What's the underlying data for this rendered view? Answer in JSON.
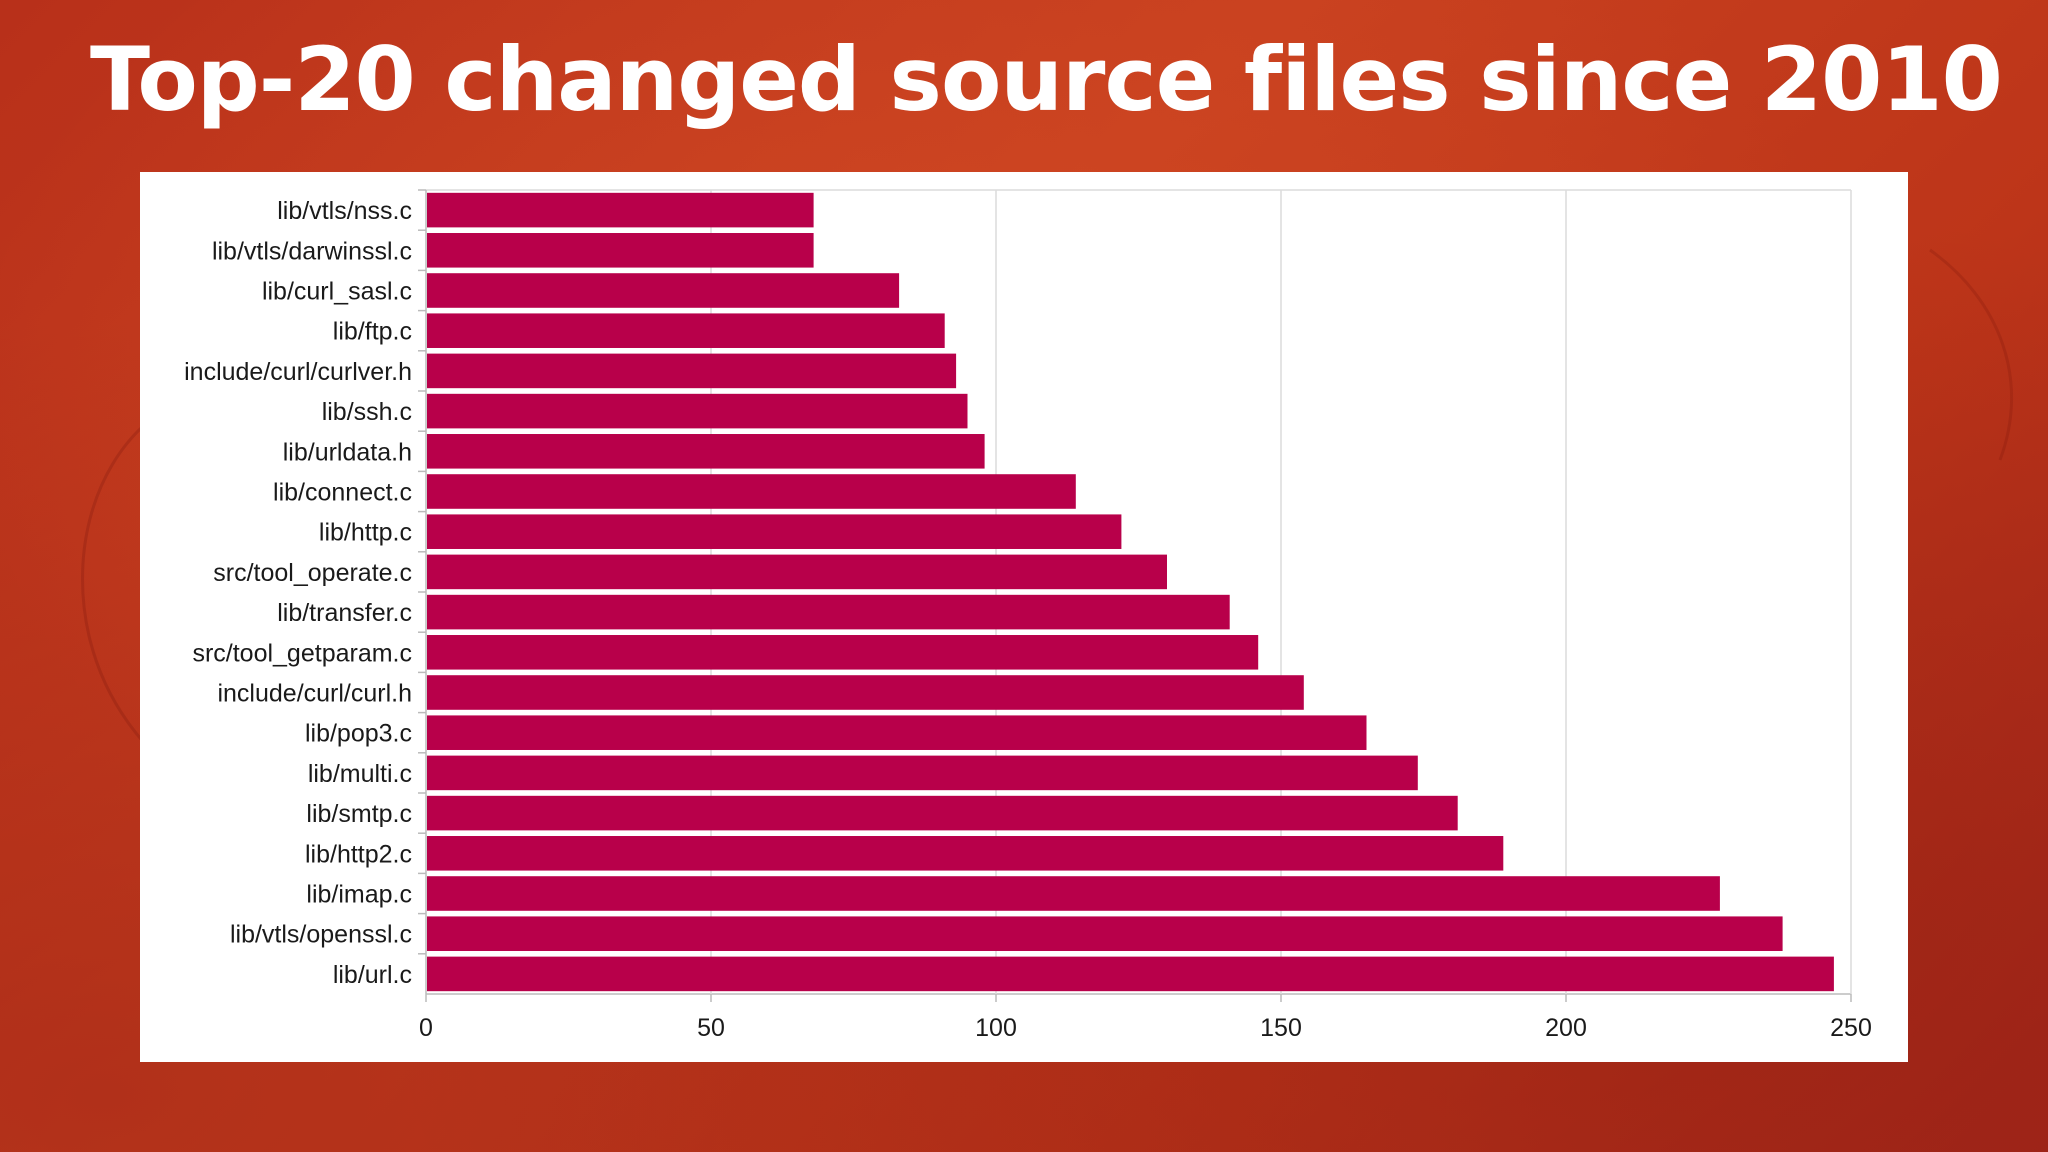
{
  "slide": {
    "title": "Top-20 changed source files since 2010",
    "background_color": "#c03a1c",
    "bar_color": "#b8004a"
  },
  "chart_data": {
    "type": "bar",
    "orientation": "horizontal",
    "title": "",
    "xlabel": "",
    "ylabel": "",
    "categories": [
      "lib/vtls/nss.c",
      "lib/vtls/darwinssl.c",
      "lib/curl_sasl.c",
      "lib/ftp.c",
      "include/curl/curlver.h",
      "lib/ssh.c",
      "lib/urldata.h",
      "lib/connect.c",
      "lib/http.c",
      "src/tool_operate.c",
      "lib/transfer.c",
      "src/tool_getparam.c",
      "include/curl/curl.h",
      "lib/pop3.c",
      "lib/multi.c",
      "lib/smtp.c",
      "lib/http2.c",
      "lib/imap.c",
      "lib/vtls/openssl.c",
      "lib/url.c"
    ],
    "values": [
      68,
      68,
      83,
      91,
      93,
      95,
      98,
      114,
      122,
      130,
      141,
      146,
      154,
      165,
      174,
      181,
      189,
      227,
      238,
      247
    ],
    "xlim": [
      0,
      250
    ],
    "x_ticks": [
      "0",
      "50",
      "100",
      "150",
      "200",
      "250"
    ],
    "grid": true,
    "legend": "none"
  }
}
